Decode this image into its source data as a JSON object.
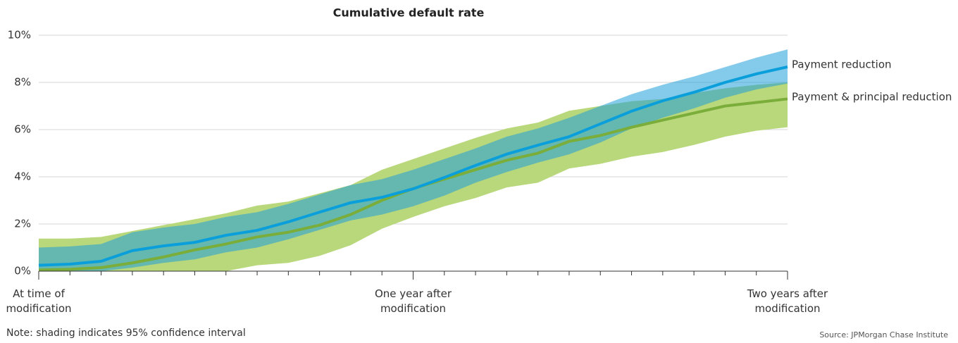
{
  "chart_data": {
    "type": "line",
    "title": "Cumulative default rate",
    "categories": [
      "At time of\nmodification",
      null,
      null,
      null,
      null,
      null,
      null,
      null,
      null,
      null,
      null,
      null,
      "One year after\nmodification",
      null,
      null,
      null,
      null,
      null,
      null,
      null,
      null,
      null,
      null,
      null,
      "Two years after\nmodification"
    ],
    "ylim": [
      0,
      10
    ],
    "yticks": [
      {
        "value": 0,
        "label": "0%"
      },
      {
        "value": 2,
        "label": "2%"
      },
      {
        "value": 4,
        "label": "4%"
      },
      {
        "value": 6,
        "label": "6%"
      },
      {
        "value": 8,
        "label": "8%"
      },
      {
        "value": 10,
        "label": "10%"
      }
    ],
    "grid": true,
    "series": [
      {
        "name": "Payment & principal reduction",
        "color": "#7aad3a",
        "band_color": "#b9d87c",
        "values": [
          0.05,
          0.08,
          0.15,
          0.35,
          0.6,
          0.9,
          1.15,
          1.45,
          1.65,
          1.95,
          2.4,
          3.0,
          3.5,
          3.9,
          4.3,
          4.7,
          5.0,
          5.5,
          5.75,
          6.1,
          6.4,
          6.7,
          7.0,
          7.15,
          7.3
        ],
        "upper": [
          1.38,
          1.38,
          1.45,
          1.7,
          1.95,
          2.2,
          2.45,
          2.78,
          2.95,
          3.3,
          3.65,
          4.3,
          4.75,
          5.2,
          5.65,
          6.05,
          6.3,
          6.8,
          7.0,
          7.2,
          7.3,
          7.55,
          7.75,
          7.9,
          8.0
        ],
        "lower": [
          0,
          0,
          0,
          0,
          0,
          0,
          0,
          0.25,
          0.35,
          0.65,
          1.1,
          1.8,
          2.3,
          2.75,
          3.1,
          3.55,
          3.75,
          4.35,
          4.55,
          4.85,
          5.05,
          5.35,
          5.7,
          5.95,
          6.1
        ]
      },
      {
        "name": "Payment reduction",
        "color": "#0a9fdb",
        "band_color": "#1f9fd8",
        "values": [
          0.25,
          0.3,
          0.42,
          0.87,
          1.07,
          1.22,
          1.52,
          1.73,
          2.09,
          2.5,
          2.9,
          3.13,
          3.49,
          3.97,
          4.48,
          4.96,
          5.34,
          5.7,
          6.24,
          6.78,
          7.22,
          7.58,
          8.0,
          8.36,
          8.66
        ],
        "upper": [
          1.0,
          1.05,
          1.15,
          1.65,
          1.85,
          2.0,
          2.3,
          2.5,
          2.85,
          3.25,
          3.65,
          3.9,
          4.3,
          4.75,
          5.2,
          5.7,
          6.05,
          6.5,
          7.0,
          7.5,
          7.9,
          8.25,
          8.65,
          9.05,
          9.4
        ],
        "lower": [
          0,
          0,
          0,
          0.15,
          0.35,
          0.5,
          0.8,
          1.0,
          1.35,
          1.75,
          2.15,
          2.4,
          2.75,
          3.2,
          3.75,
          4.2,
          4.6,
          4.95,
          5.45,
          6.05,
          6.5,
          6.9,
          7.35,
          7.7,
          7.95
        ]
      }
    ],
    "note": "Note: shading indicates 95% confidence interval",
    "source": "Source: JPMorgan Chase Institute"
  }
}
